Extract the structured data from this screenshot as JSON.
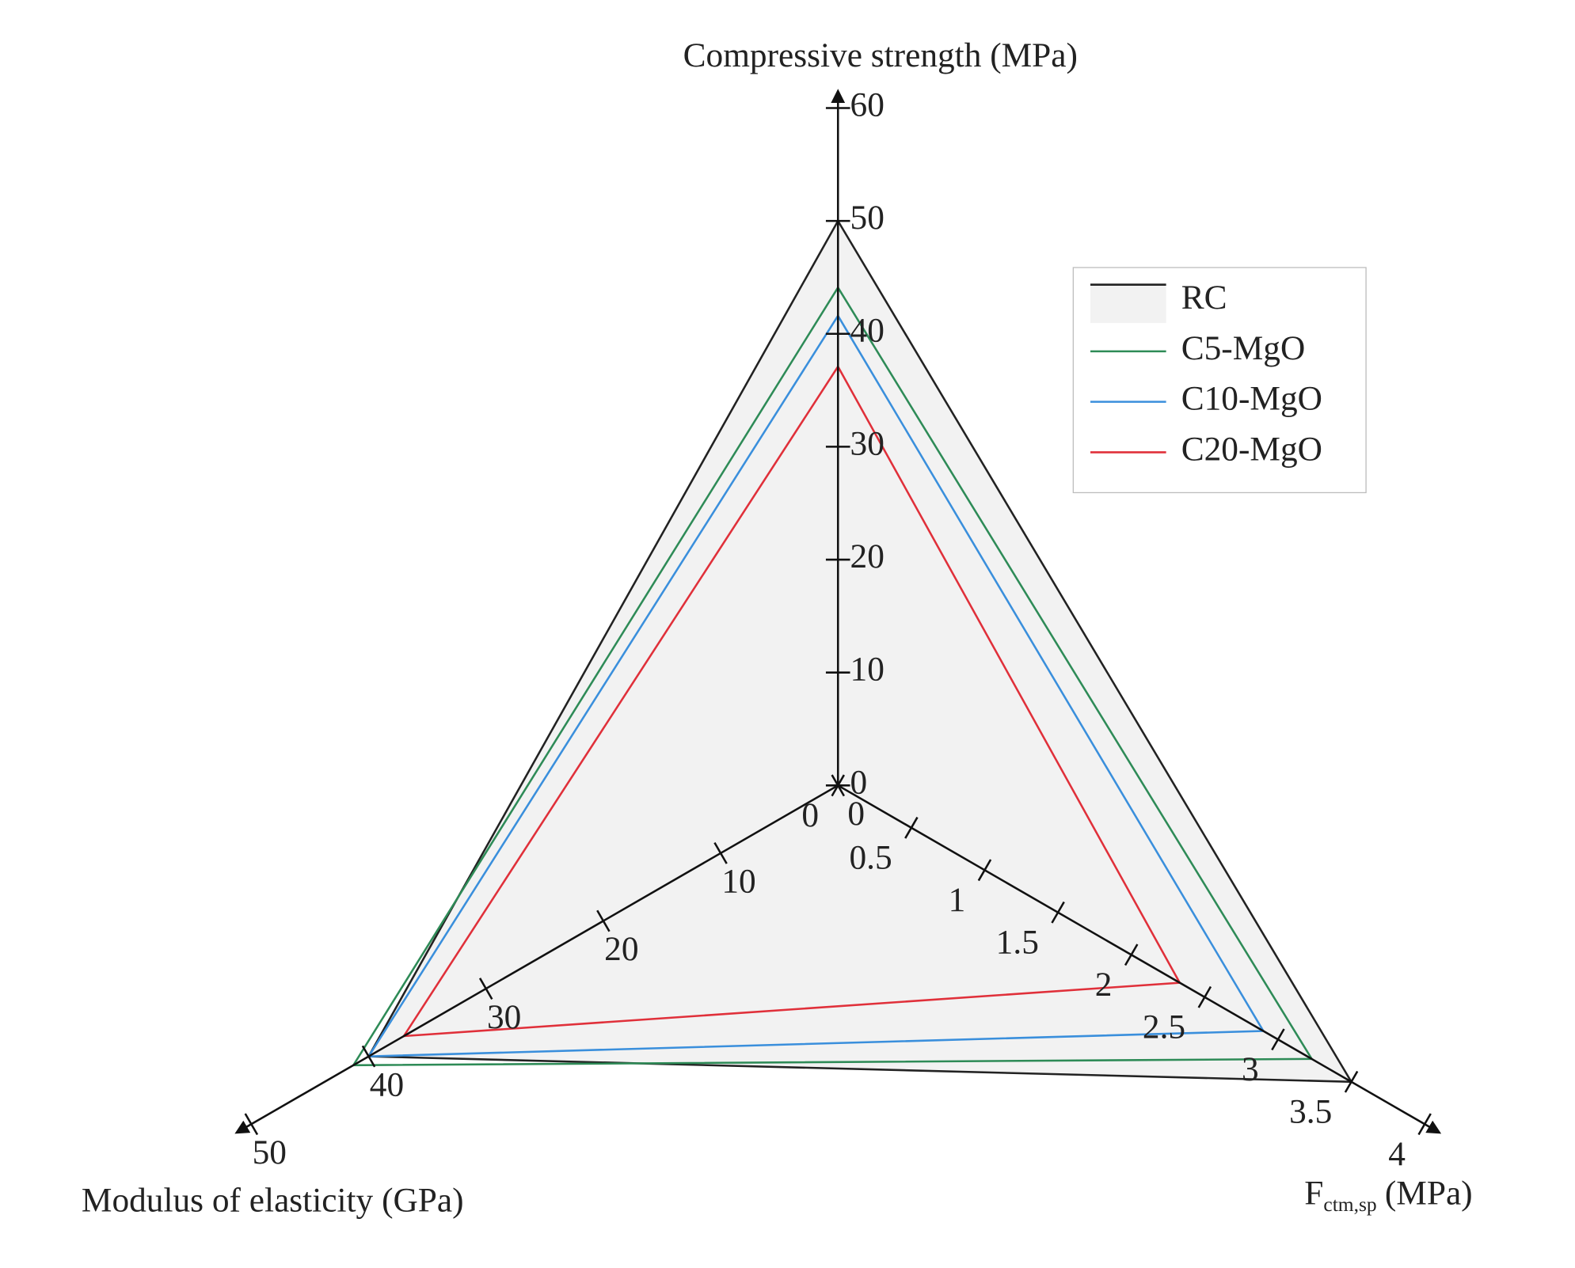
{
  "chart_data": {
    "type": "radar",
    "axes": [
      {
        "title": "Compressive strength (MPa)",
        "lim": [
          0,
          60
        ],
        "ticks": [
          0,
          10,
          20,
          30,
          40,
          50,
          60
        ]
      },
      {
        "title": {
          "main": "F",
          "sub": "ctm,sp",
          "unit": "(MPa)"
        },
        "lim": [
          0,
          4
        ],
        "ticks": [
          0,
          0.5,
          1,
          1.5,
          2,
          2.5,
          3,
          3.5,
          4
        ]
      },
      {
        "title": "Modulus of elasticity (GPa)",
        "lim": [
          0,
          50
        ],
        "ticks": [
          0,
          10,
          20,
          30,
          40,
          50
        ]
      }
    ],
    "series": [
      {
        "name": "RC",
        "color": "#222222",
        "fill": "#f2f2f2",
        "values": [
          50,
          3.5,
          40
        ]
      },
      {
        "name": "C5-MgO",
        "color": "#2e8b57",
        "values": [
          44.1,
          3.23,
          41.3
        ]
      },
      {
        "name": "C10-MgO",
        "color": "#3a8fdc",
        "values": [
          41.6,
          2.9,
          40
        ]
      },
      {
        "name": "C20-MgO",
        "color": "#e0303a",
        "values": [
          37.1,
          2.33,
          37
        ]
      }
    ]
  }
}
